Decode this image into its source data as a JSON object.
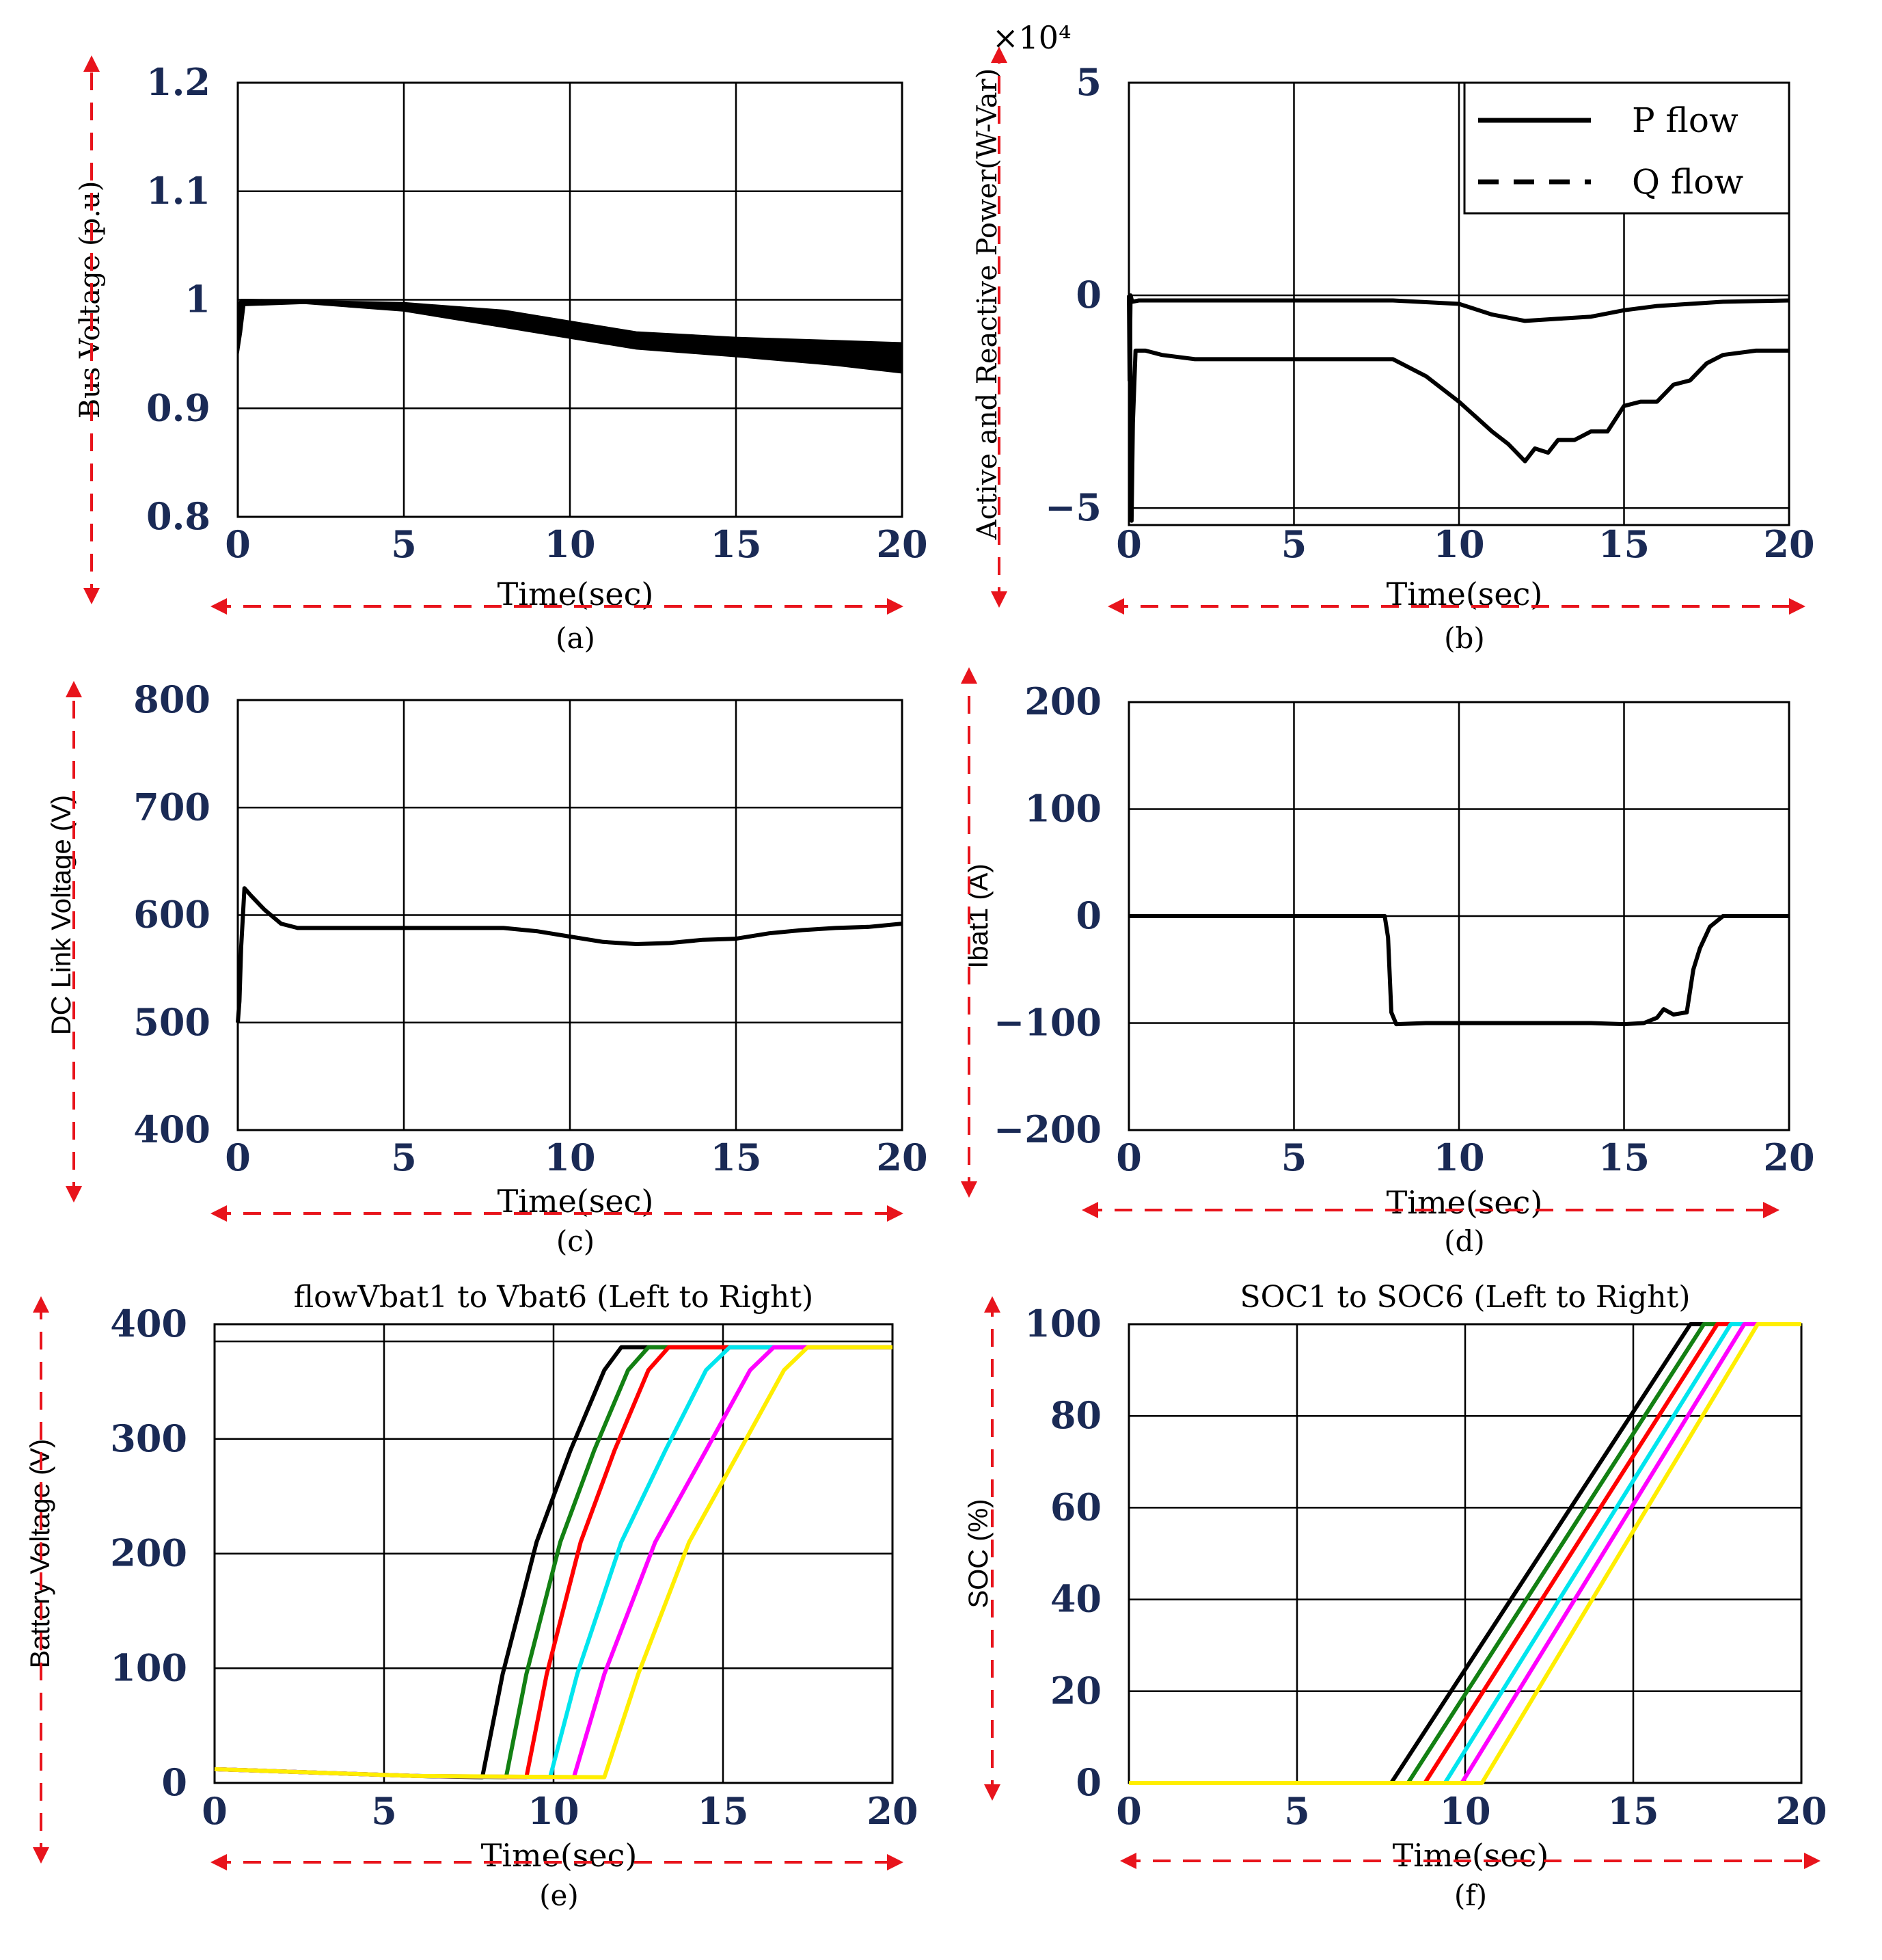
{
  "chart_data": [
    {
      "id": "a",
      "type": "line",
      "caption": "(a)",
      "xlabel": "Time(sec)",
      "ylabel": "Bus Voltage (p.u)",
      "xlim": [
        0,
        20
      ],
      "ylim": [
        0.8,
        1.2
      ],
      "xticks": [
        "0",
        "5",
        "10",
        "15",
        "20"
      ],
      "yticks": [
        "0.8",
        "0.9",
        "1",
        "1.1",
        "1.2"
      ],
      "series": [
        {
          "name": "Bus voltage",
          "style": "band",
          "x": [
            0,
            0.1,
            0.2,
            2,
            5,
            8,
            10,
            12,
            15,
            18,
            20
          ],
          "lo": [
            0.95,
            0.97,
            0.995,
            0.997,
            0.99,
            0.975,
            0.965,
            0.955,
            0.948,
            0.94,
            0.933
          ],
          "hi": [
            0.995,
            1.0,
            1.0,
            0.999,
            0.997,
            0.99,
            0.98,
            0.97,
            0.965,
            0.962,
            0.96
          ]
        }
      ]
    },
    {
      "id": "b",
      "type": "line",
      "caption": "(b)",
      "xlabel": "Time(sec)",
      "ylabel": "Active and Reactive Power(W-Var)",
      "multiplier": "×10⁴",
      "xlim": [
        0,
        20
      ],
      "ylim": [
        -5.4,
        5
      ],
      "xticks": [
        "0",
        "5",
        "10",
        "15",
        "20"
      ],
      "yticks": [
        "−5",
        "0",
        "5"
      ],
      "legend": [
        "P flow",
        "Q flow"
      ],
      "series": [
        {
          "name": "P flow",
          "style": "solid",
          "x": [
            0,
            0.03,
            0.08,
            0.12,
            0.2,
            0.5,
            1,
            2,
            4,
            6,
            8,
            9,
            10,
            11,
            11.5,
            12,
            12.3,
            12.7,
            13,
            13.5,
            14,
            14.5,
            15,
            15.5,
            16,
            16.5,
            17,
            17.5,
            18,
            19,
            20
          ],
          "y": [
            0,
            -0.05,
            -5.3,
            -3,
            -1.3,
            -1.3,
            -1.4,
            -1.5,
            -1.5,
            -1.5,
            -1.5,
            -1.9,
            -2.5,
            -3.2,
            -3.5,
            -3.9,
            -3.6,
            -3.7,
            -3.4,
            -3.4,
            -3.2,
            -3.2,
            -2.6,
            -2.5,
            -2.5,
            -2.1,
            -2.0,
            -1.6,
            -1.4,
            -1.3,
            -1.3
          ]
        },
        {
          "name": "Q flow",
          "style": "solid",
          "x": [
            0,
            0.02,
            0.05,
            0.1,
            0.3,
            2,
            5,
            8,
            10,
            11,
            12,
            13,
            14,
            15,
            16,
            17,
            18,
            20
          ],
          "y": [
            0,
            -2.0,
            0,
            -0.15,
            -0.12,
            -0.12,
            -0.12,
            -0.12,
            -0.2,
            -0.45,
            -0.6,
            -0.55,
            -0.5,
            -0.35,
            -0.25,
            -0.2,
            -0.15,
            -0.12
          ]
        }
      ]
    },
    {
      "id": "c",
      "type": "line",
      "caption": "(c)",
      "xlabel": "Time(sec)",
      "ylabel": "DC Link Voltage (V)",
      "xlim": [
        0,
        20
      ],
      "ylim": [
        400,
        800
      ],
      "xticks": [
        "0",
        "5",
        "10",
        "15",
        "20"
      ],
      "yticks": [
        "400",
        "500",
        "600",
        "700",
        "800"
      ],
      "series": [
        {
          "name": "DC link voltage",
          "style": "solid",
          "x": [
            0,
            0.05,
            0.1,
            0.2,
            0.4,
            0.8,
            1.3,
            1.8,
            3,
            6,
            8,
            9,
            10,
            11,
            12,
            13,
            14,
            15,
            16,
            17,
            18,
            19,
            20
          ],
          "y": [
            500,
            520,
            570,
            625,
            618,
            605,
            592,
            588,
            588,
            588,
            588,
            585,
            580,
            575,
            573,
            574,
            577,
            578,
            583,
            586,
            588,
            589,
            592
          ]
        }
      ]
    },
    {
      "id": "d",
      "type": "line",
      "caption": "(d)",
      "xlabel": "Time(sec)",
      "ylabel": "Ibat1 (A)",
      "xlim": [
        0,
        20
      ],
      "ylim": [
        -200,
        200
      ],
      "xticks": [
        "0",
        "5",
        "10",
        "15",
        "20"
      ],
      "yticks": [
        "−200",
        "−100",
        "0",
        "100",
        "200"
      ],
      "series": [
        {
          "name": "Ibat1",
          "style": "solid",
          "x": [
            0,
            7.75,
            7.85,
            7.95,
            8.1,
            9,
            10,
            12,
            14,
            15,
            15.6,
            16,
            16.2,
            16.5,
            16.9,
            17.1,
            17.3,
            17.6,
            18,
            18.5,
            19,
            20
          ],
          "y": [
            0,
            0,
            -20,
            -90,
            -101,
            -100,
            -100,
            -100,
            -100,
            -101,
            -100,
            -95,
            -87,
            -92,
            -90,
            -50,
            -30,
            -10,
            0,
            0,
            0,
            0
          ]
        }
      ]
    },
    {
      "id": "e",
      "type": "line",
      "caption": "(e)",
      "title": "flowVbat1 to Vbat6 (Left to Right)",
      "xlabel": "Time(sec)",
      "ylabel": "Battery Voltage (V)",
      "xlim": [
        0,
        20
      ],
      "ylim": [
        0,
        400
      ],
      "xticks": [
        "0",
        "5",
        "10",
        "15",
        "20"
      ],
      "yticks": [
        "0",
        "100",
        "200",
        "300",
        "400"
      ],
      "reference_line": 385,
      "series": [
        {
          "name": "Vbat1",
          "color": "#000000",
          "x": [
            0,
            2,
            4,
            6,
            7.9,
            8.5,
            9.5,
            10.5,
            11.5,
            12,
            20
          ],
          "y": [
            12,
            10,
            8,
            6,
            5,
            95,
            210,
            290,
            360,
            380,
            380
          ]
        },
        {
          "name": "Vbat2",
          "color": "#138013",
          "x": [
            0,
            2,
            4,
            6,
            8.6,
            9.2,
            10.2,
            11.2,
            12.2,
            12.8,
            20
          ],
          "y": [
            12,
            10,
            8,
            6,
            5,
            95,
            210,
            290,
            360,
            380,
            380
          ]
        },
        {
          "name": "Vbat3",
          "color": "#ff0000",
          "x": [
            0,
            2,
            4,
            6,
            9.2,
            9.8,
            10.8,
            11.8,
            12.8,
            13.4,
            20
          ],
          "y": [
            12,
            10,
            8,
            6,
            5,
            95,
            210,
            290,
            360,
            380,
            380
          ]
        },
        {
          "name": "Vbat4",
          "color": "#00e5ee",
          "x": [
            0,
            2,
            4,
            6,
            9.9,
            10.7,
            12,
            13.3,
            14.5,
            15.2,
            20
          ],
          "y": [
            12,
            10,
            8,
            6,
            5,
            95,
            210,
            290,
            360,
            380,
            380
          ]
        },
        {
          "name": "Vbat5",
          "color": "#ff00ff",
          "x": [
            0,
            2,
            4,
            6,
            10.6,
            11.5,
            13,
            14.5,
            15.8,
            16.5,
            20
          ],
          "y": [
            12,
            10,
            8,
            6,
            5,
            95,
            210,
            290,
            360,
            380,
            380
          ]
        },
        {
          "name": "Vbat6",
          "color": "#ffee00",
          "x": [
            0,
            2,
            4,
            6,
            11.5,
            12.5,
            14,
            15.5,
            16.8,
            17.5,
            20
          ],
          "y": [
            12,
            10,
            8,
            6,
            5,
            95,
            210,
            290,
            360,
            380,
            380
          ]
        }
      ]
    },
    {
      "id": "f",
      "type": "line",
      "caption": "(f)",
      "title": "SOC1 to SOC6 (Left to Right)",
      "xlabel": "Time(sec)",
      "ylabel": "SOC (%)",
      "xlim": [
        0,
        20
      ],
      "ylim": [
        0,
        100
      ],
      "xticks": [
        "0",
        "5",
        "10",
        "15",
        "20"
      ],
      "yticks": [
        "0",
        "20",
        "40",
        "60",
        "80",
        "100"
      ],
      "series": [
        {
          "name": "SOC1",
          "color": "#000000",
          "x": [
            0,
            7.8,
            16.7,
            20
          ],
          "y": [
            0,
            0,
            100,
            100
          ]
        },
        {
          "name": "SOC2",
          "color": "#138013",
          "x": [
            0,
            8.3,
            17.1,
            20
          ],
          "y": [
            0,
            0,
            100,
            100
          ]
        },
        {
          "name": "SOC3",
          "color": "#ff0000",
          "x": [
            0,
            8.8,
            17.5,
            20
          ],
          "y": [
            0,
            0,
            100,
            100
          ]
        },
        {
          "name": "SOC4",
          "color": "#00e5ee",
          "x": [
            0,
            9.4,
            17.9,
            20
          ],
          "y": [
            0,
            0,
            100,
            100
          ]
        },
        {
          "name": "SOC5",
          "color": "#ff00ff",
          "x": [
            0,
            9.9,
            18.3,
            20
          ],
          "y": [
            0,
            0,
            100,
            100
          ]
        },
        {
          "name": "SOC6",
          "color": "#ffee00",
          "x": [
            0,
            10.5,
            18.7,
            20
          ],
          "y": [
            0,
            0,
            100,
            100
          ]
        }
      ]
    }
  ],
  "colors": {
    "arrow": "#e8141c",
    "tick": "#1a2a55",
    "line": "#000000",
    "grid": "#000000"
  }
}
